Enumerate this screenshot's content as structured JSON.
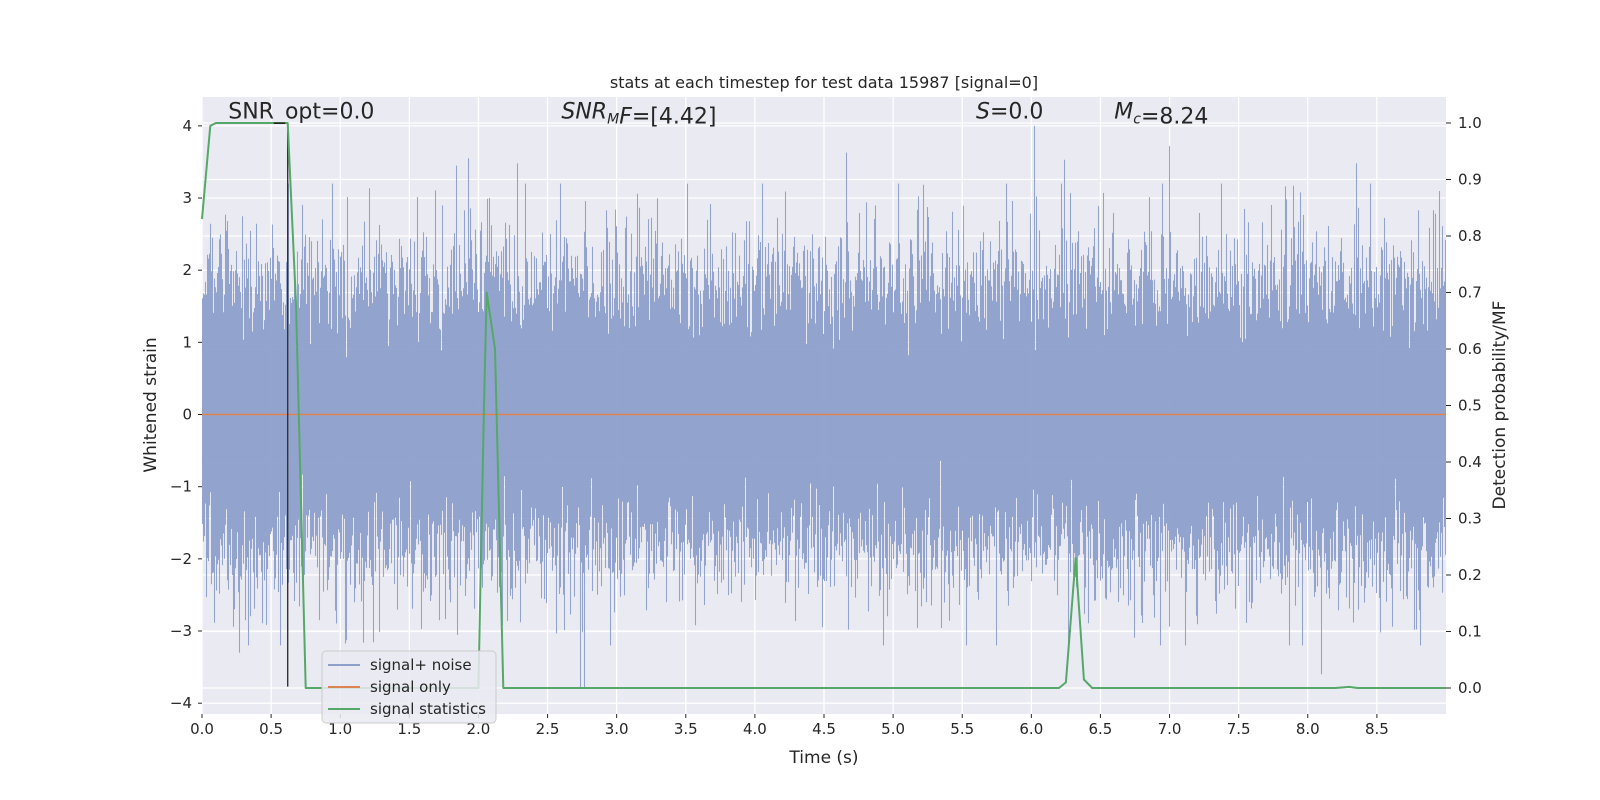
{
  "chart_data": {
    "type": "line",
    "title": "stats at each timestep for test data 15987 [signal=0]",
    "xlabel": "Time (s)",
    "ylabel": "Whitened strain",
    "y2label": "Detection probability/MF",
    "xlim": [
      0,
      9.0
    ],
    "ylim": [
      -4.15,
      4.4
    ],
    "y2lim": [
      -0.046,
      1.046
    ],
    "xticks": [
      0.0,
      0.5,
      1.0,
      1.5,
      2.0,
      2.5,
      3.0,
      3.5,
      4.0,
      4.5,
      5.0,
      5.5,
      6.0,
      6.5,
      7.0,
      7.5,
      8.0,
      8.5
    ],
    "xtick_labels": [
      "0.0",
      "0.5",
      "1.0",
      "1.5",
      "2.0",
      "2.5",
      "3.0",
      "3.5",
      "4.0",
      "4.5",
      "5.0",
      "5.5",
      "6.0",
      "6.5",
      "7.0",
      "7.5",
      "8.0",
      "8.5"
    ],
    "yticks": [
      4,
      3,
      2,
      1,
      0,
      -1,
      -2,
      -3,
      -4
    ],
    "ytick_labels": [
      "4",
      "3",
      "2",
      "1",
      "0",
      "−1",
      "−2",
      "−3",
      "−4"
    ],
    "y2ticks": [
      1.0,
      0.9,
      0.8,
      0.7,
      0.6,
      0.5,
      0.4,
      0.3,
      0.2,
      0.1,
      0.0
    ],
    "y2tick_labels": [
      "1.0",
      "0.9",
      "0.8",
      "0.7",
      "0.6",
      "0.5",
      "0.4",
      "0.3",
      "0.2",
      "0.1",
      "0.0"
    ],
    "annotations": [
      {
        "text": "SNR_opt=0.0",
        "x": 0.19,
        "y": 4.1,
        "italic_prefix": ""
      },
      {
        "text": "=[4.42]",
        "x": 2.6,
        "y": 4.1,
        "italic_prefix": "SNR",
        "sub": "M",
        "italic_suffix": "F"
      },
      {
        "text": "=0.0",
        "x": 5.6,
        "y": 4.1,
        "italic_prefix": "S"
      },
      {
        "text": "=8.24",
        "x": 6.6,
        "y": 4.1,
        "italic_prefix": "M",
        "sub": "c"
      }
    ],
    "vline": {
      "x": 0.62,
      "y_from": -3.77,
      "y_to": 4.0
    },
    "series": [
      {
        "name": "signal+ noise",
        "color": "#8da0cb",
        "style": "noise",
        "sample_rate": 4096,
        "duration": 9.0,
        "sigma": 0.95,
        "notable_spikes": [
          {
            "x": 0.27,
            "y": -3.3
          },
          {
            "x": 1.84,
            "y": 3.45
          },
          {
            "x": 1.93,
            "y": 3.55
          },
          {
            "x": 2.28,
            "y": 3.48
          },
          {
            "x": 2.77,
            "y": -3.78
          },
          {
            "x": 2.74,
            "y": -3.78
          },
          {
            "x": 4.66,
            "y": 3.63
          },
          {
            "x": 4.93,
            "y": -3.2
          },
          {
            "x": 6.02,
            "y": 4.0
          },
          {
            "x": 6.24,
            "y": 3.53
          },
          {
            "x": 7.0,
            "y": 3.72
          },
          {
            "x": 8.1,
            "y": -3.6
          },
          {
            "x": 8.35,
            "y": 3.48
          }
        ]
      },
      {
        "name": "signal only",
        "color": "#dd8452",
        "x": [
          0,
          9.0
        ],
        "y": [
          0,
          0
        ]
      },
      {
        "name": "signal statistics",
        "color": "#55a868",
        "axis": "right",
        "x": [
          0.0,
          0.06,
          0.1,
          0.3,
          0.5,
          0.62,
          0.68,
          0.75,
          2.0,
          2.04,
          2.06,
          2.12,
          2.18,
          6.2,
          6.25,
          6.32,
          6.38,
          6.44,
          8.2,
          8.3,
          8.36,
          9.0
        ],
        "y": [
          0.83,
          0.995,
          1.0,
          1.0,
          1.0,
          1.0,
          0.68,
          0.0,
          0.0,
          0.5,
          0.7,
          0.6,
          0.0,
          0.0,
          0.01,
          0.23,
          0.015,
          0.0,
          0.0,
          0.002,
          0.0,
          0.0
        ]
      }
    ],
    "legend": {
      "position": "lower-left",
      "entries": [
        {
          "label": "signal+ noise",
          "color": "#8da0cb"
        },
        {
          "label": "signal only",
          "color": "#dd8452"
        },
        {
          "label": "signal statistics",
          "color": "#55a868"
        }
      ]
    }
  }
}
